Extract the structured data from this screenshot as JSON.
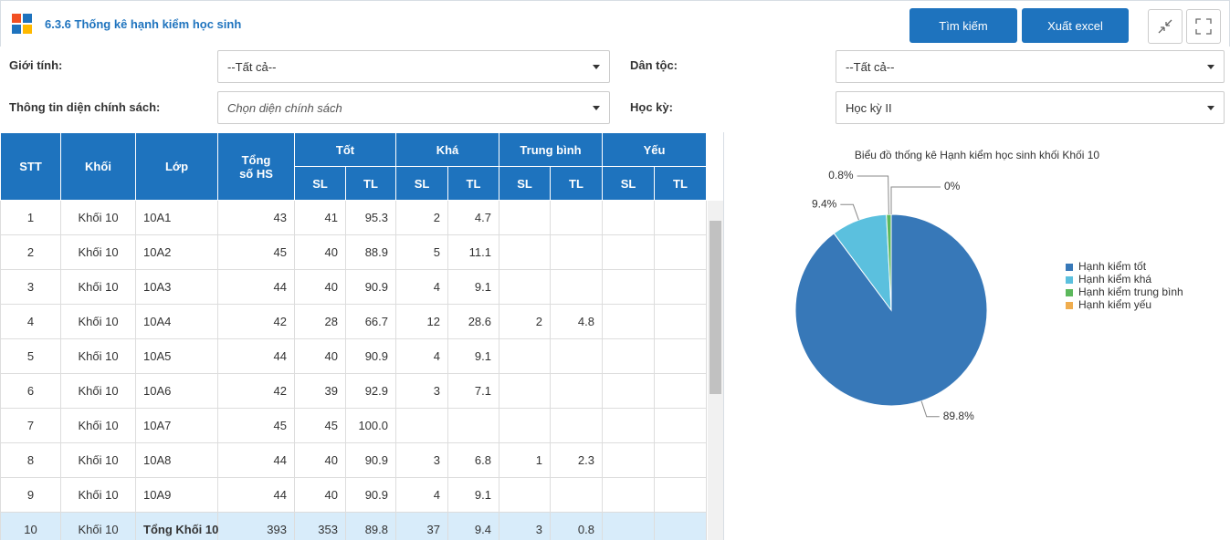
{
  "header": {
    "title": "6.3.6 Thống kê hạnh kiểm học sinh",
    "buttons": [
      "Tìm kiếm",
      "Xuất excel"
    ]
  },
  "filters": [
    {
      "label": "Giới tính:",
      "value": "--Tất cả--"
    },
    {
      "label": "Dân tộc:",
      "value": "--Tất cả--"
    },
    {
      "label": "Thông tin diện chính sách:",
      "placeholder": "Chọn diện chính sách"
    },
    {
      "label": "Học kỳ:",
      "value": "Học kỳ II"
    }
  ],
  "table": {
    "columns": [
      "STT",
      "Khối",
      "Lớp",
      "Tổng số HS"
    ],
    "groups": [
      "Tốt",
      "Khá",
      "Trung bình",
      "Yếu"
    ],
    "subcolumns": [
      "SL",
      "TL"
    ],
    "rows": [
      [
        "1",
        "Khối 10",
        "10A1",
        "43",
        "41",
        "95.3",
        "2",
        "4.7",
        null,
        null,
        null,
        null
      ],
      [
        "2",
        "Khối 10",
        "10A2",
        "45",
        "40",
        "88.9",
        "5",
        "11.1",
        null,
        null,
        null,
        null
      ],
      [
        "3",
        "Khối 10",
        "10A3",
        "44",
        "40",
        "90.9",
        "4",
        "9.1",
        null,
        null,
        null,
        null
      ],
      [
        "4",
        "Khối 10",
        "10A4",
        "42",
        "28",
        "66.7",
        "12",
        "28.6",
        "2",
        "4.8",
        null,
        null
      ],
      [
        "5",
        "Khối 10",
        "10A5",
        "44",
        "40",
        "90.9",
        "4",
        "9.1",
        null,
        null,
        null,
        null
      ],
      [
        "6",
        "Khối 10",
        "10A6",
        "42",
        "39",
        "92.9",
        "3",
        "7.1",
        null,
        null,
        null,
        null
      ],
      [
        "7",
        "Khối 10",
        "10A7",
        "45",
        "45",
        "100.0",
        null,
        null,
        null,
        null,
        null,
        null
      ],
      [
        "8",
        "Khối 10",
        "10A8",
        "44",
        "40",
        "90.9",
        "3",
        "6.8",
        "1",
        "2.3",
        null,
        null
      ],
      [
        "9",
        "Khối 10",
        "10A9",
        "44",
        "40",
        "90.9",
        "4",
        "9.1",
        null,
        null,
        null,
        null
      ],
      [
        "10",
        "Khối 10",
        "Tổng Khối 10",
        "393",
        "353",
        "89.8",
        "37",
        "9.4",
        "3",
        "0.8",
        null,
        null
      ]
    ]
  },
  "chart_data": {
    "type": "pie",
    "title": "Biểu đồ thống kê Hạnh kiểm học sinh khối Khối 10",
    "categories": [
      "Hạnh kiểm tốt",
      "Hạnh kiểm khá",
      "Hạnh kiểm trung bình",
      "Hạnh kiểm yếu"
    ],
    "values": [
      89.8,
      9.4,
      0.8,
      0
    ],
    "value_labels": [
      "89.8%",
      "9.4%",
      "0.8%",
      "0%"
    ],
    "colors": [
      "#3778b8",
      "#5bc0de",
      "#5cb85c",
      "#f0ad4e"
    ]
  }
}
